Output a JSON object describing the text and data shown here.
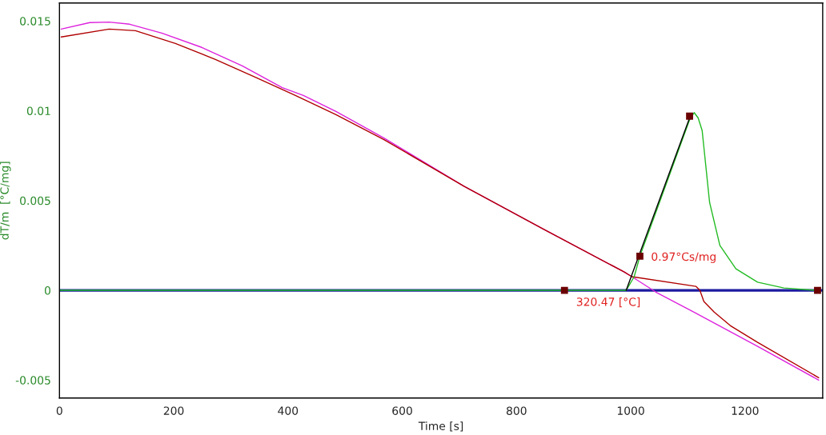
{
  "chart_data": {
    "type": "line",
    "xlabel": "Time [s]",
    "ylabel": "dT/m  [°C/mg]",
    "xlim": [
      0,
      1336
    ],
    "ylim": [
      -0.006,
      0.016
    ],
    "xticks": [
      0,
      200,
      400,
      600,
      800,
      1000,
      1200
    ],
    "yticks": [
      {
        "value": -0.005,
        "label": "-0.005"
      },
      0,
      0.005,
      0.01,
      0.015
    ],
    "grid": false,
    "legend": false,
    "annotations": [
      {
        "text": "0.97°Cs/mg",
        "x": 1016,
        "y": 0.0019
      },
      {
        "text": "320.47 [°C]",
        "x": 992,
        "y": 0
      }
    ],
    "series": [
      {
        "color": "#1a1aa0",
        "x": [
          0,
          1336
        ],
        "values": [
          0,
          0
        ]
      },
      {
        "color": "#dd22dd",
        "x": [
          3,
          53,
          87,
          123,
          179,
          249,
          320,
          390,
          427,
          484,
          568,
          708,
          848,
          988,
          1002,
          1044,
          1110,
          1222,
          1329
        ],
        "values": [
          0.01455,
          0.01491,
          0.01494,
          0.01482,
          0.01433,
          0.01353,
          0.0125,
          0.01129,
          0.01085,
          0.00996,
          0.00848,
          0.0058,
          0.00339,
          0.00103,
          0.00076,
          -0.0001,
          -0.00121,
          -0.00312,
          -0.005
        ]
      },
      {
        "color": "#b00000",
        "x": [
          3,
          87,
          133,
          203,
          273,
          343,
          413,
          484,
          568,
          708,
          848,
          988,
          1002,
          1114,
          1121,
          1128,
          1146,
          1174,
          1222,
          1329
        ],
        "values": [
          0.01411,
          0.01455,
          0.01446,
          0.01375,
          0.01286,
          0.01187,
          0.01085,
          0.00978,
          0.00839,
          0.0058,
          0.00339,
          0.00103,
          0.00076,
          0.00022,
          0,
          -0.00062,
          -0.00121,
          -0.00196,
          -0.0029,
          -0.00487
        ]
      },
      {
        "color": "#22bb22",
        "x": [
          0,
          992,
          1006,
          1016,
          1103,
          1111,
          1118,
          1125,
          1138,
          1156,
          1184,
          1222,
          1268,
          1324
        ],
        "values": [
          0,
          0,
          0.00076,
          0.0019,
          0.0095,
          0.0099,
          0.0096,
          0.0089,
          0.0049,
          0.0025,
          0.0012,
          0.00045,
          0.00013,
          0
        ]
      },
      {
        "color": "#000000",
        "x": [
          992,
          1103
        ],
        "values": [
          0,
          0.0096
        ]
      },
      {
        "type": "scatter",
        "marker": "square",
        "color": "#6b0000",
        "x": [
          884,
          1016,
          1103,
          1327
        ],
        "values": [
          0,
          0.0019,
          0.0097,
          0
        ]
      }
    ]
  }
}
